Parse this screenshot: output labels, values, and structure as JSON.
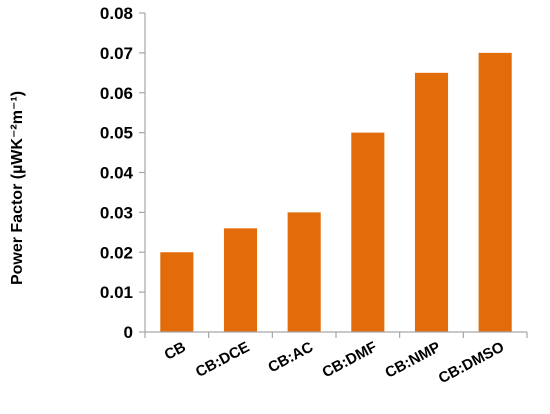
{
  "chart_data": {
    "type": "bar",
    "categories": [
      "CB",
      "CB:DCE",
      "CB:AC",
      "CB:DMF",
      "CB:NMP",
      "CB:DMSO"
    ],
    "values": [
      0.02,
      0.026,
      0.03,
      0.05,
      0.065,
      0.07
    ],
    "title": "",
    "xlabel": "",
    "ylabel": "Power Factor (µWK⁻²m⁻¹)",
    "ylim": [
      0,
      0.08
    ],
    "yticks": [
      "0",
      "0.01",
      "0.02",
      "0.03",
      "0.04",
      "0.05",
      "0.06",
      "0.07",
      "0.08"
    ],
    "grid": false,
    "legend": "none",
    "bar_color": "#E36C0A",
    "axis_color": "#A6A6A6"
  }
}
